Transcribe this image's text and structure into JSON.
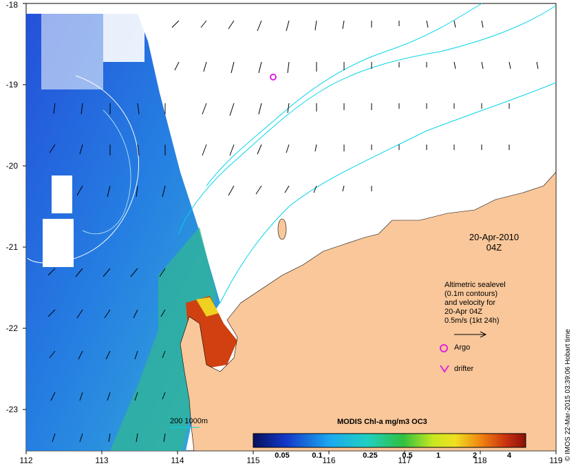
{
  "map": {
    "x_ticks": [
      "112",
      "113",
      "114",
      "115",
      "116",
      "117",
      "118",
      "119"
    ],
    "y_ticks": [
      "-18",
      "-19",
      "-20",
      "-21",
      "-22",
      "-23"
    ],
    "colors": {
      "land": "#f9c79a",
      "ocean_blue": "#1e5fd2",
      "contour": "#00d4e8",
      "argo": "#e020e0",
      "drifter": "#e020e0"
    }
  },
  "annotation": {
    "date": "20-Apr-2010",
    "time": "04Z"
  },
  "sealevel_legend": {
    "lines": [
      "Altimetric sealevel",
      "(0.1m contours)",
      "and velocity for",
      "20-Apr 04Z",
      "0.5m/s (1kt 24h)"
    ]
  },
  "markers": {
    "argo_label": "Argo",
    "drifter_label": "drifter"
  },
  "colorbar": {
    "title": "MODIS Chl-a mg/m3 OC3",
    "ticks": [
      "0.05",
      "0.1",
      "0.25",
      "0.5",
      "1",
      "2",
      "4"
    ]
  },
  "contour_legend": {
    "label": "200  1000m"
  },
  "credit": "© IMOS 22-Mar-2015 03:39:06 Hobart time"
}
